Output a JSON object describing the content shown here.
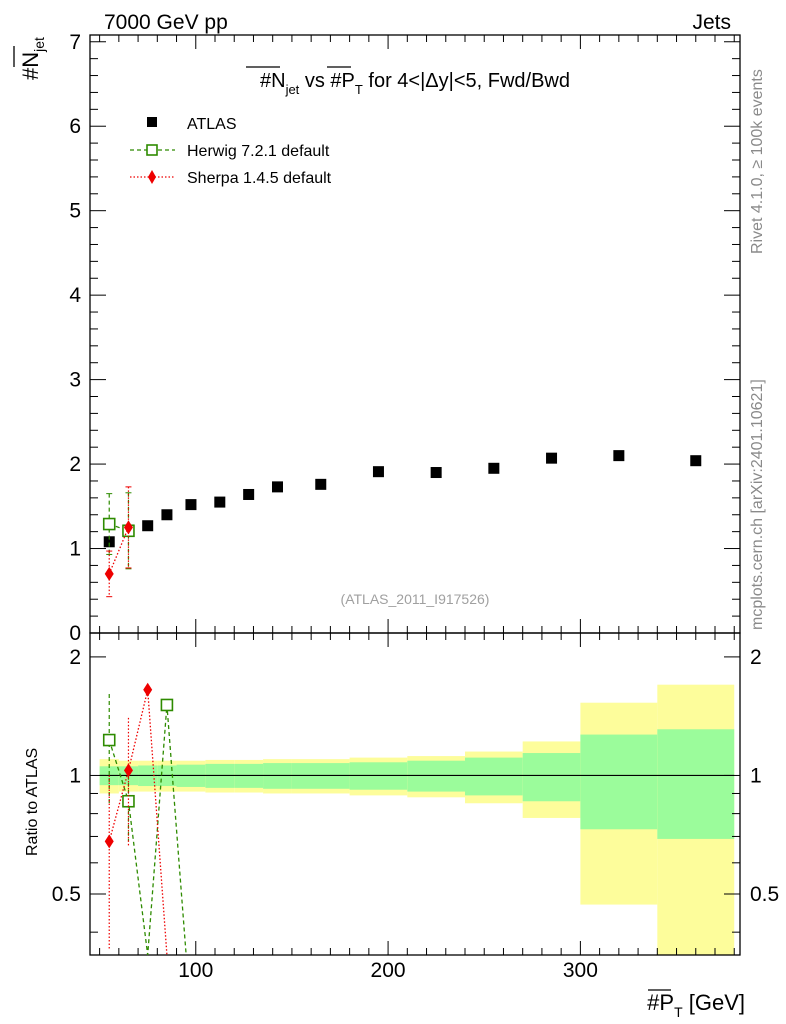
{
  "header": {
    "left": "7000 GeV pp",
    "right": "Jets"
  },
  "side_text": {
    "rivet": "Rivet 4.1.0, ≥ 100k events",
    "mcplots": "mcplots.cern.ch [arXiv:2401.10621]"
  },
  "chart_data": {
    "type": "scatter",
    "title": "#N_jet vs #P_T for 4<|Δy|<5, Fwd/Bwd",
    "title_parts": [
      "#N",
      "jet",
      " vs #P",
      "T",
      " for 4<|Δy|<5, Fwd/Bwd"
    ],
    "analysis_id": "(ATLAS_2011_I917526)",
    "xlabel": "#P_T [GeV]",
    "xlabel_parts": [
      "#P",
      "T",
      " [GeV]"
    ],
    "ylabel": "#N_jet",
    "ylabel_parts": [
      "#N",
      "jet"
    ],
    "ratio_ylabel": "Ratio to ATLAS",
    "xlim": [
      45,
      383
    ],
    "ylim": [
      0,
      7.08
    ],
    "ratio_ylim": [
      0.35,
      2.3
    ],
    "x_ticks": [
      100,
      200,
      300
    ],
    "x_tick_labels": [
      "100",
      "200",
      "300"
    ],
    "y_ticks": [
      0,
      1,
      2,
      3,
      4,
      5,
      6,
      7
    ],
    "y_tick_labels": [
      "0",
      "1",
      "2",
      "3",
      "4",
      "5",
      "6",
      "7"
    ],
    "ratio_ticks": [
      0.5,
      1,
      2
    ],
    "ratio_tick_labels": [
      "0.5",
      "1",
      "2"
    ],
    "legend_placement": "top-left",
    "series": [
      {
        "name": "ATLAS",
        "color": "#000000",
        "marker": "square-filled",
        "x": [
          55,
          65,
          75,
          85,
          97.5,
          112.5,
          127.5,
          142.5,
          165,
          195,
          225,
          255,
          285,
          320,
          360
        ],
        "values": [
          1.08,
          1.22,
          1.27,
          1.4,
          1.52,
          1.55,
          1.64,
          1.73,
          1.76,
          1.91,
          1.9,
          1.95,
          2.07,
          2.1,
          2.04
        ]
      },
      {
        "name": "Herwig 7.2.1 default",
        "color": "#2e8b00",
        "marker": "square-open",
        "x": [
          55,
          65
        ],
        "values": [
          1.29,
          1.21
        ],
        "errors": [
          0.36,
          0.45
        ]
      },
      {
        "name": "Sherpa 1.4.5 default",
        "color": "#ee0000",
        "marker": "diamond-filled",
        "x": [
          55,
          65
        ],
        "values": [
          0.7,
          1.25
        ],
        "errors": [
          0.27,
          0.48
        ]
      }
    ],
    "ratio": {
      "bin_edges": [
        50,
        60,
        70,
        80,
        90,
        105,
        120,
        135,
        150,
        180,
        210,
        240,
        270,
        300,
        340,
        380
      ],
      "band_inner_half": [
        0.055,
        0.055,
        0.06,
        0.06,
        0.065,
        0.07,
        0.07,
        0.075,
        0.075,
        0.08,
        0.09,
        0.11,
        0.14,
        0.27,
        0.31
      ],
      "band_outer_half": [
        0.1,
        0.09,
        0.09,
        0.09,
        0.09,
        0.095,
        0.095,
        0.1,
        0.1,
        0.11,
        0.12,
        0.15,
        0.22,
        0.53,
        0.7
      ],
      "inner_color": "#9bfc9b",
      "outer_color": "#fdfd9b",
      "series": [
        {
          "name": "Herwig 7.2.1 default",
          "color": "#2e8b00",
          "x": [
            55,
            65,
            75,
            85,
            95
          ],
          "values": [
            1.23,
            0.86,
            0.02,
            1.51,
            0.02
          ],
          "errors": [
            0.38,
            0.18,
            0,
            0,
            0
          ],
          "visible": [
            true,
            true,
            false,
            true,
            false
          ]
        },
        {
          "name": "Sherpa 1.4.5 default",
          "color": "#ee0000",
          "x": [
            55,
            65,
            75,
            85
          ],
          "values": [
            0.68,
            1.03,
            1.65,
            0.02
          ],
          "errors": [
            0.32,
            0.37,
            0,
            0
          ],
          "visible": [
            true,
            true,
            true,
            false
          ]
        }
      ]
    }
  }
}
